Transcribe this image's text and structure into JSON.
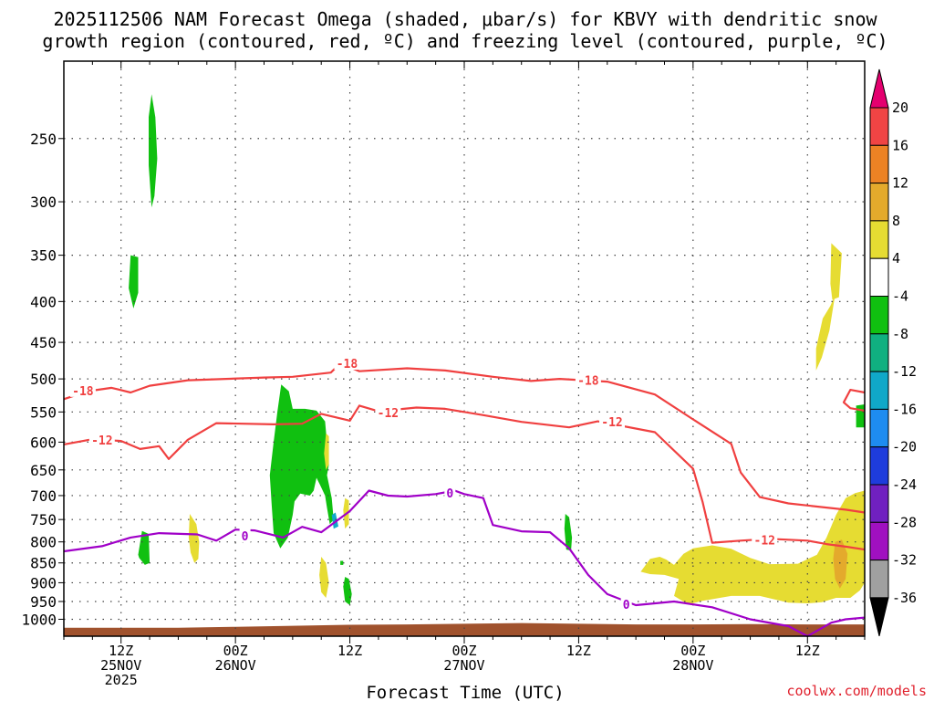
{
  "title": {
    "line1": "2025112506 NAM Forecast Omega (shaded, μbar/s) for KBVY with dendritic snow",
    "line2": "growth region (contoured, red, ºC) and freezing level (contoured, purple, ºC)"
  },
  "credit": "coolwx.com/models",
  "chart_data": {
    "type": "time-height",
    "title": "2025112506 NAM Forecast Omega (shaded, μbar/s) for KBVY with dendritic snow growth region (contoured, red, ºC) and freezing level (contoured, purple, ºC)",
    "xlabel": "Forecast Time (UTC)",
    "ylabel": "",
    "xlim_hours": [
      6,
      90
    ],
    "ylim_hPa": [
      1050,
      200
    ],
    "yscale": "log",
    "y_ticks": [
      250,
      300,
      350,
      400,
      450,
      500,
      550,
      600,
      650,
      700,
      750,
      800,
      850,
      900,
      950,
      1000
    ],
    "x_ticks": [
      {
        "hour": 12,
        "lines": [
          "12Z",
          "25NOV",
          "2025"
        ]
      },
      {
        "hour": 24,
        "lines": [
          "00Z",
          "26NOV"
        ]
      },
      {
        "hour": 36,
        "lines": [
          "12Z"
        ]
      },
      {
        "hour": 48,
        "lines": [
          "00Z",
          "27NOV"
        ]
      },
      {
        "hour": 60,
        "lines": [
          "12Z"
        ]
      },
      {
        "hour": 72,
        "lines": [
          "00Z",
          "28NOV"
        ]
      },
      {
        "hour": 84,
        "lines": [
          "12Z"
        ]
      }
    ],
    "grid": true,
    "colorbar": {
      "labels": [
        "20",
        "16",
        "12",
        "8",
        "4",
        "-4",
        "-8",
        "-12",
        "-16",
        "-20",
        "-24",
        "-28",
        "-32",
        "-36"
      ],
      "colors": [
        "#e4006f",
        "#f04444",
        "#ec8224",
        "#e4aa2c",
        "#e6dc32",
        "#ffffff",
        "#10c010",
        "#10b080",
        "#10a8c8",
        "#1e8cf0",
        "#1e3cdc",
        "#7020c0",
        "#a010c0",
        "#a0a0a0",
        "#000000"
      ]
    },
    "contours": [
      {
        "label": "-18",
        "color": "#f04040",
        "points": [
          [
            6,
            530
          ],
          [
            8.5,
            518
          ],
          [
            11,
            513
          ],
          [
            13,
            520
          ],
          [
            15,
            510
          ],
          [
            19,
            502
          ],
          [
            23,
            500
          ],
          [
            27,
            498
          ],
          [
            30,
            497
          ],
          [
            34,
            491
          ],
          [
            35,
            478
          ],
          [
            37,
            489
          ],
          [
            42,
            485
          ],
          [
            46,
            488
          ],
          [
            51,
            497
          ],
          [
            55,
            503
          ],
          [
            58,
            500
          ],
          [
            63,
            504
          ],
          [
            68,
            523
          ],
          [
            72,
            562
          ],
          [
            76,
            603
          ],
          [
            77,
            655
          ],
          [
            79,
            703
          ],
          [
            82,
            716
          ],
          [
            88,
            729
          ],
          [
            90,
            735
          ]
        ],
        "label_positions": [
          [
            8,
            517
          ],
          [
            35.7,
            478
          ],
          [
            61,
            502
          ]
        ]
      },
      {
        "label": "-12",
        "color": "#f04040",
        "points": [
          [
            6,
            604
          ],
          [
            9,
            595
          ],
          [
            12,
            598
          ],
          [
            14,
            612
          ],
          [
            16,
            607
          ],
          [
            17,
            630
          ],
          [
            19,
            596
          ],
          [
            22,
            568
          ],
          [
            28,
            570
          ],
          [
            31,
            569
          ],
          [
            33,
            553
          ],
          [
            36,
            564
          ],
          [
            37,
            540
          ],
          [
            39,
            549
          ],
          [
            43,
            543
          ],
          [
            46,
            545
          ],
          [
            50,
            555
          ],
          [
            54,
            566
          ],
          [
            59,
            575
          ],
          [
            62,
            565
          ],
          [
            68,
            583
          ],
          [
            72,
            648
          ],
          [
            73,
            713
          ],
          [
            74,
            802
          ],
          [
            77,
            797
          ],
          [
            80,
            793
          ],
          [
            84,
            797
          ],
          [
            86,
            805
          ],
          [
            88,
            811
          ],
          [
            90,
            818
          ]
        ],
        "label_positions": [
          [
            10,
            596
          ],
          [
            40,
            551
          ],
          [
            63.5,
            566
          ],
          [
            79.5,
            795
          ]
        ]
      },
      {
        "label": "-12",
        "color": "#f04040",
        "points": [
          [
            90,
            520
          ],
          [
            88.5,
            516
          ],
          [
            87.8,
            535
          ],
          [
            88.5,
            544
          ],
          [
            90,
            548
          ]
        ],
        "label_positions": []
      },
      {
        "label": "0",
        "color": "#a000c8",
        "points": [
          [
            6,
            822
          ],
          [
            10,
            810
          ],
          [
            13,
            790
          ],
          [
            16,
            780
          ],
          [
            20,
            783
          ],
          [
            22,
            797
          ],
          [
            24,
            772
          ],
          [
            26,
            774
          ],
          [
            29,
            790
          ],
          [
            31,
            766
          ],
          [
            33,
            778
          ],
          [
            36,
            732
          ],
          [
            38,
            690
          ],
          [
            40,
            700
          ],
          [
            42,
            702
          ],
          [
            45,
            697
          ],
          [
            47,
            690
          ],
          [
            48,
            697
          ],
          [
            50,
            705
          ],
          [
            51,
            762
          ],
          [
            54,
            776
          ],
          [
            57,
            778
          ],
          [
            59,
            815
          ],
          [
            61,
            880
          ],
          [
            63,
            930
          ],
          [
            66,
            960
          ],
          [
            70,
            950
          ],
          [
            74,
            966
          ],
          [
            78,
            1000
          ],
          [
            82,
            1020
          ],
          [
            84,
            1050
          ]
        ],
        "label_positions": [
          [
            25,
            786
          ],
          [
            46.5,
            695
          ],
          [
            65,
            957
          ]
        ]
      },
      {
        "label": "0",
        "color": "#a000c8",
        "points": [
          [
            84,
            1050
          ],
          [
            86.5,
            1010
          ],
          [
            88,
            1000
          ],
          [
            90,
            995
          ]
        ],
        "label_positions": []
      }
    ],
    "omega_areas": [
      {
        "value_range": "-8 to -4",
        "color": "#10c010",
        "points": [
          [
            15.2,
            220
          ],
          [
            15.6,
            235
          ],
          [
            15.8,
            265
          ],
          [
            15.5,
            295
          ],
          [
            15.2,
            305
          ],
          [
            14.9,
            270
          ],
          [
            14.9,
            235
          ]
        ]
      },
      {
        "value_range": "-8 to -4",
        "color": "#10c010",
        "points": [
          [
            13.0,
            350
          ],
          [
            13.8,
            352
          ],
          [
            13.8,
            390
          ],
          [
            13.3,
            408
          ],
          [
            12.8,
            385
          ]
        ]
      },
      {
        "value_range": "-8 to -4",
        "color": "#10c010",
        "points": [
          [
            28.8,
            508
          ],
          [
            29.6,
            518
          ],
          [
            30.0,
            545
          ],
          [
            31.3,
            545
          ],
          [
            32.5,
            548
          ],
          [
            33.4,
            565
          ],
          [
            33.8,
            640
          ],
          [
            33.6,
            660
          ],
          [
            34.1,
            705
          ],
          [
            34.3,
            750
          ],
          [
            33.9,
            760
          ],
          [
            33.6,
            725
          ],
          [
            33.4,
            700
          ],
          [
            32.9,
            680
          ],
          [
            32.5,
            665
          ],
          [
            32.2,
            690
          ],
          [
            31.8,
            700
          ],
          [
            30.8,
            696
          ],
          [
            30.2,
            712
          ],
          [
            30.0,
            740
          ],
          [
            29.5,
            790
          ],
          [
            28.7,
            815
          ],
          [
            28.0,
            780
          ],
          [
            27.8,
            720
          ],
          [
            27.6,
            660
          ],
          [
            28.0,
            600
          ],
          [
            28.4,
            550
          ]
        ]
      },
      {
        "value_range": "-12 to -8",
        "color": "#10a8c8",
        "points": [
          [
            34.1,
            740
          ],
          [
            34.5,
            735
          ],
          [
            34.8,
            765
          ],
          [
            34.3,
            770
          ]
        ]
      },
      {
        "value_range": "-8 to -4",
        "color": "#10c010",
        "points": [
          [
            14.2,
            775
          ],
          [
            14.9,
            782
          ],
          [
            15.0,
            850
          ],
          [
            14.5,
            855
          ],
          [
            13.9,
            838
          ],
          [
            13.8,
            830
          ]
        ]
      },
      {
        "value_range": "-8 to -4",
        "color": "#10c010",
        "points": [
          [
            35.5,
            885
          ],
          [
            35.9,
            890
          ],
          [
            36.2,
            930
          ],
          [
            36.0,
            960
          ],
          [
            35.5,
            950
          ],
          [
            35.3,
            910
          ]
        ]
      },
      {
        "value_range": "-8 to -4",
        "color": "#10c010",
        "points": [
          [
            58.6,
            738
          ],
          [
            59.0,
            745
          ],
          [
            59.3,
            790
          ],
          [
            59.2,
            820
          ],
          [
            58.7,
            818
          ],
          [
            58.5,
            770
          ]
        ]
      },
      {
        "value_range": "-8 to -4",
        "color": "#10c010",
        "points": [
          [
            89.1,
            540
          ],
          [
            90,
            538
          ],
          [
            90,
            575
          ],
          [
            89.1,
            575
          ]
        ]
      },
      {
        "value_range": "-8 to -4",
        "color": "#10c010",
        "points": [
          [
            35.0,
            845
          ],
          [
            35.3,
            845
          ],
          [
            35.3,
            855
          ],
          [
            35.0,
            855
          ]
        ]
      },
      {
        "value_range": "4 to 8",
        "color": "#e6dc32",
        "points": [
          [
            19.2,
            738
          ],
          [
            19.9,
            760
          ],
          [
            20.2,
            800
          ],
          [
            20.1,
            840
          ],
          [
            19.7,
            850
          ],
          [
            19.3,
            825
          ],
          [
            19.1,
            790
          ]
        ]
      },
      {
        "value_range": "4 to 8",
        "color": "#e6dc32",
        "points": [
          [
            33.0,
            835
          ],
          [
            33.5,
            850
          ],
          [
            33.8,
            900
          ],
          [
            33.5,
            940
          ],
          [
            33.0,
            925
          ],
          [
            32.8,
            880
          ]
        ]
      },
      {
        "value_range": "4 to 8",
        "color": "#e6dc32",
        "points": [
          [
            33.5,
            585
          ],
          [
            33.8,
            590
          ],
          [
            33.8,
            640
          ],
          [
            33.5,
            650
          ],
          [
            33.3,
            620
          ]
        ]
      },
      {
        "value_range": "4 to 8",
        "color": "#e6dc32",
        "points": [
          [
            35.5,
            705
          ],
          [
            35.9,
            710
          ],
          [
            35.9,
            760
          ],
          [
            35.5,
            770
          ],
          [
            35.3,
            730
          ]
        ]
      },
      {
        "value_range": "4 to 8",
        "color": "#e6dc32",
        "points": [
          [
            86.5,
            338
          ],
          [
            87.6,
            348
          ],
          [
            87.3,
            395
          ],
          [
            86.6,
            398
          ],
          [
            86.4,
            380
          ]
        ]
      },
      {
        "value_range": "4 to 8",
        "color": "#e6dc32",
        "points": [
          [
            84.9,
            458
          ],
          [
            85.6,
            420
          ],
          [
            86.4,
            405
          ],
          [
            86.9,
            392
          ],
          [
            86.3,
            435
          ],
          [
            85.5,
            470
          ],
          [
            84.9,
            488
          ]
        ]
      },
      {
        "value_range": "4 to 8",
        "color": "#e6dc32",
        "points": [
          [
            66.5,
            872
          ],
          [
            67.5,
            840
          ],
          [
            68.5,
            835
          ],
          [
            69.2,
            842
          ],
          [
            70.0,
            855
          ],
          [
            71.0,
            828
          ],
          [
            72.0,
            815
          ],
          [
            74.0,
            808
          ],
          [
            76.0,
            816
          ],
          [
            78.0,
            838
          ],
          [
            80.0,
            853
          ],
          [
            83.0,
            852
          ],
          [
            85.0,
            830
          ],
          [
            86.0,
            790
          ],
          [
            87.0,
            740
          ],
          [
            88.0,
            705
          ],
          [
            89.0,
            695
          ],
          [
            90,
            690
          ],
          [
            90,
            900
          ],
          [
            89.5,
            920
          ],
          [
            88.5,
            940
          ],
          [
            87.0,
            940
          ],
          [
            85.5,
            952
          ],
          [
            84.0,
            955
          ],
          [
            82.0,
            953
          ],
          [
            79.0,
            935
          ],
          [
            76.0,
            935
          ],
          [
            73.0,
            948
          ],
          [
            71.5,
            958
          ],
          [
            70.0,
            935
          ],
          [
            70.5,
            890
          ],
          [
            69.0,
            880
          ],
          [
            67.5,
            878
          ]
        ]
      },
      {
        "value_range": "8 to 12",
        "color": "#e4aa2c",
        "points": [
          [
            86.9,
            800
          ],
          [
            87.6,
            795
          ],
          [
            88.2,
            828
          ],
          [
            88.0,
            890
          ],
          [
            87.4,
            915
          ],
          [
            86.9,
            890
          ],
          [
            86.7,
            840
          ]
        ]
      }
    ],
    "ground": {
      "color": "#a0522d",
      "points": [
        [
          6,
          1025
        ],
        [
          18,
          1025
        ],
        [
          24,
          1022
        ],
        [
          30,
          1019
        ],
        [
          36,
          1016
        ],
        [
          42,
          1015
        ],
        [
          48,
          1013
        ],
        [
          54,
          1011
        ],
        [
          60,
          1013
        ],
        [
          66,
          1015
        ],
        [
          72,
          1015
        ],
        [
          78,
          1014
        ],
        [
          84,
          1015
        ],
        [
          90,
          1015
        ]
      ]
    }
  }
}
